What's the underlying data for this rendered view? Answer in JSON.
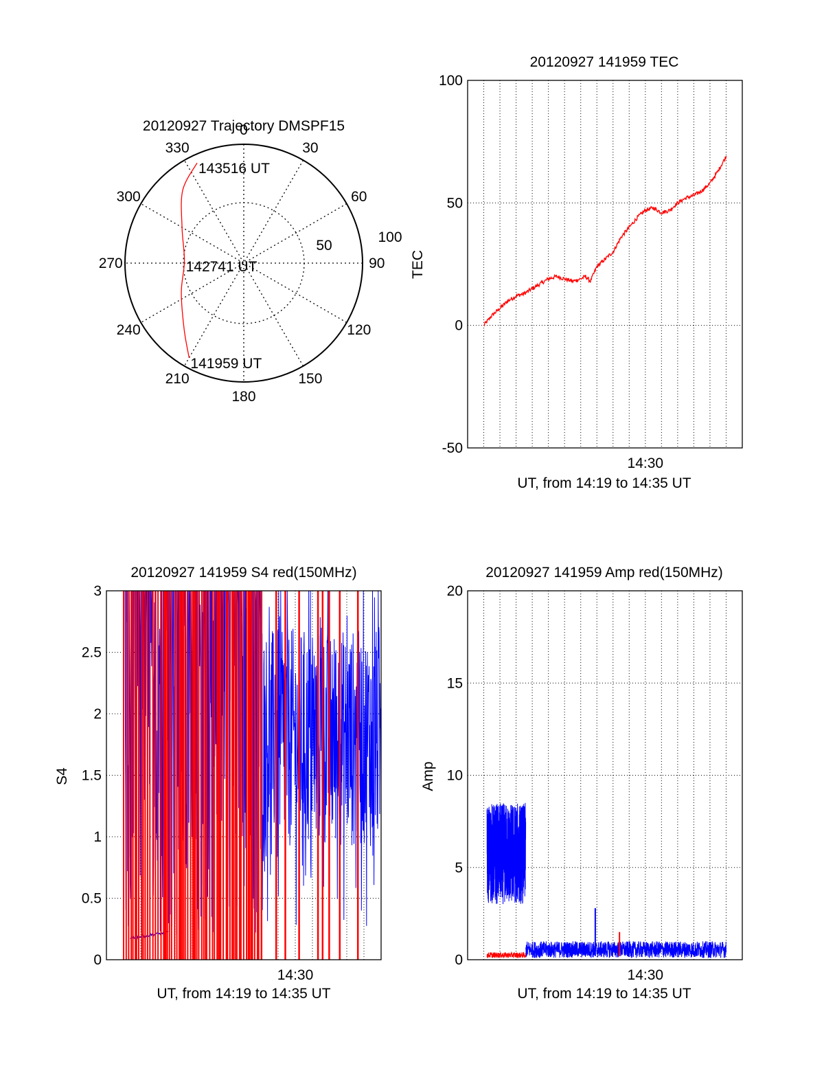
{
  "chart_data": [
    {
      "type": "polar",
      "title": "20120927 Trajectory DMSPF15",
      "angle_labels": [
        "0",
        "30",
        "60",
        "90",
        "120",
        "150",
        "180",
        "210",
        "240",
        "270",
        "300",
        "330"
      ],
      "radius_labels": [
        "50",
        "100"
      ],
      "rlim": [
        0,
        100
      ],
      "grid": true,
      "series": [
        {
          "color": "#ff0000",
          "points": [
            {
              "az": 335,
              "el": 93
            },
            {
              "az": 320,
              "el": 80
            },
            {
              "az": 300,
              "el": 60
            },
            {
              "az": 272,
              "el": 50
            },
            {
              "az": 245,
              "el": 58
            },
            {
              "az": 222,
              "el": 75
            },
            {
              "az": 210,
              "el": 92
            }
          ]
        }
      ],
      "annotations": [
        {
          "text": "143516 UT",
          "az": 335,
          "el": 93
        },
        {
          "text": "142741 UT",
          "az": 272,
          "el": 50
        },
        {
          "text": "141959 UT",
          "az": 210,
          "el": 92
        }
      ]
    },
    {
      "type": "line",
      "title": "20120927 141959 TEC",
      "xlabel": "UT, from 14:19 to 14:35 UT",
      "ylabel": "TEC",
      "xtick_labels": [
        {
          "t": 10.0,
          "label": "14:30"
        }
      ],
      "xlim": [
        -1.0,
        16.0
      ],
      "ylim": [
        -50,
        100
      ],
      "yticks": [
        -50,
        0,
        50,
        100
      ],
      "grid": true,
      "series": [
        {
          "color": "#ff0000",
          "x": [
            0.0,
            0.5,
            1.0,
            1.5,
            2.0,
            2.5,
            3.0,
            3.5,
            4.0,
            4.5,
            5.0,
            5.5,
            6.0,
            6.3,
            6.6,
            7.0,
            7.5,
            8.0,
            8.5,
            9.0,
            9.5,
            10.0,
            10.5,
            11.0,
            11.5,
            12.0,
            12.5,
            13.0,
            13.5,
            14.0,
            14.5,
            15.0
          ],
          "y": [
            0,
            4,
            7,
            10,
            12,
            13,
            15,
            17,
            19,
            20,
            19,
            18,
            19,
            20,
            18,
            24,
            27,
            30,
            36,
            40,
            44,
            47,
            48,
            46,
            47,
            50,
            52,
            53,
            55,
            58,
            63,
            69
          ]
        }
      ]
    },
    {
      "type": "line",
      "title": "20120927 141959 S4 red(150MHz)",
      "xlabel": "UT, from 14:19 to 14:35 UT",
      "ylabel": "S4",
      "xtick_labels": [
        {
          "t": 11.0,
          "label": "14:30"
        }
      ],
      "xlim": [
        0.0,
        16.0
      ],
      "ylim": [
        0,
        3
      ],
      "yticks": [
        0,
        0.5,
        1,
        1.5,
        2,
        2.5,
        3
      ],
      "ytick_labels": [
        "0",
        "0.5",
        "1",
        "1.5",
        "2",
        "2.5",
        "3"
      ],
      "grid": true,
      "series": [
        {
          "color": "#0000ff",
          "x_range": [
            1.0,
            16.0
          ],
          "low_segment": {
            "x": [
              1.4,
              3.6
            ],
            "y": [
              0.18,
              0.22
            ]
          },
          "y_envelope": [
            0.3,
            3.0
          ]
        },
        {
          "color": "#ff0000",
          "x_range": [
            1.0,
            15.0
          ],
          "spikes": "vertical lines between 0 and 3"
        }
      ]
    },
    {
      "type": "line",
      "title": "20120927 141959 Amp red(150MHz)",
      "xlabel": "UT, from 14:19 to 14:35 UT",
      "ylabel": "Amp",
      "xtick_labels": [
        {
          "t": 10.0,
          "label": "14:30"
        }
      ],
      "xlim": [
        -1.0,
        16.0
      ],
      "ylim": [
        0,
        20
      ],
      "yticks": [
        0,
        5,
        10,
        15,
        20
      ],
      "grid": true,
      "series": [
        {
          "color": "#0000ff",
          "segments": [
            {
              "x": [
                0.2,
                2.6
              ],
              "y_band": [
                3.0,
                8.5
              ]
            },
            {
              "x": [
                2.6,
                15.0
              ],
              "y_band": [
                0.1,
                1.0
              ]
            }
          ],
          "peak": {
            "x": 6.9,
            "y": 2.8
          }
        },
        {
          "color": "#ff0000",
          "segments": [
            {
              "x": [
                0.2,
                2.6
              ],
              "y_band": [
                0.1,
                0.4
              ]
            }
          ],
          "peak": {
            "x": 8.4,
            "y": 1.5
          }
        }
      ]
    }
  ]
}
